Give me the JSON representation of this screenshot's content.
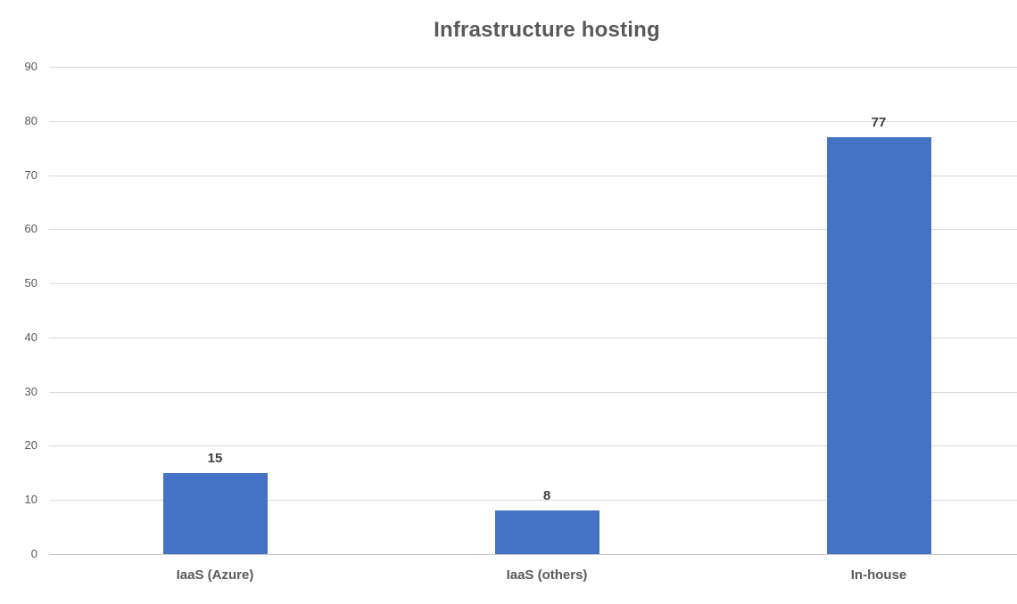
{
  "chart_data": {
    "type": "bar",
    "title": "Infrastructure hosting",
    "categories": [
      "IaaS (Azure)",
      "IaaS (others)",
      "In-house"
    ],
    "values": [
      15,
      8,
      77
    ],
    "data_labels": [
      "15",
      "8",
      "77"
    ],
    "xlabel": "",
    "ylabel": "",
    "ylim": [
      0,
      90
    ],
    "yticks": [
      0,
      10,
      20,
      30,
      40,
      50,
      60,
      70,
      80,
      90
    ],
    "grid": true,
    "legend": "none",
    "colors": {
      "bar": "#4472C4",
      "title": "#595959",
      "tick_label": "#595959",
      "category_label": "#595959",
      "data_label": "#404040",
      "gridline": "#D9D9D9",
      "axis_line": "#C6C6C6",
      "background": "#FFFFFF"
    }
  }
}
